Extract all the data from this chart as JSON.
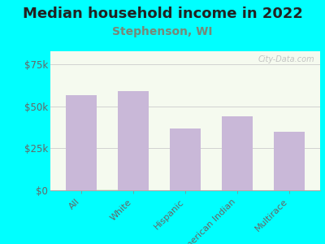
{
  "title": "Median household income in 2022",
  "subtitle": "Stephenson, WI",
  "categories": [
    "All",
    "White",
    "Hispanic",
    "American Indian",
    "Multirace"
  ],
  "values": [
    57000,
    59000,
    37000,
    44000,
    35000
  ],
  "bar_color": "#c9b8d8",
  "background_outer": "#00ffff",
  "title_color": "#222222",
  "subtitle_color": "#778877",
  "tick_label_color": "#666666",
  "ytick_values": [
    0,
    25000,
    50000,
    75000
  ],
  "ylim": [
    0,
    83000
  ],
  "watermark": "City-Data.com",
  "title_fontsize": 13,
  "subtitle_fontsize": 10,
  "tick_fontsize": 8.5,
  "xtick_fontsize": 8
}
